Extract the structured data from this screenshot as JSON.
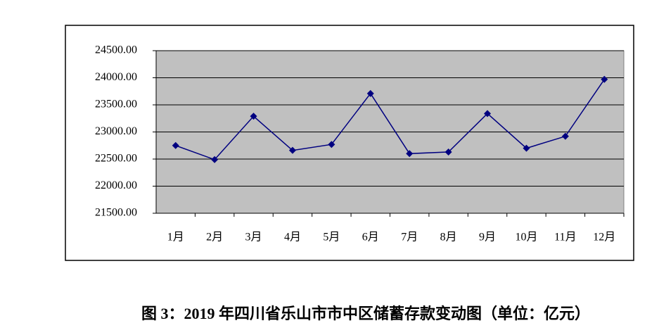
{
  "chart_data": {
    "type": "line",
    "title": "图 3：2019 年四川省乐山市市中区储蓄存款变动图（单位：亿元）",
    "categories": [
      "1月",
      "2月",
      "3月",
      "4月",
      "5月",
      "6月",
      "7月",
      "8月",
      "9月",
      "10月",
      "11月",
      "12月"
    ],
    "series": [
      {
        "color": "#000080",
        "values": [
          22750,
          22490,
          23290,
          22660,
          22770,
          23710,
          22600,
          22630,
          23340,
          22700,
          22920,
          23970
        ]
      }
    ],
    "ylim": [
      21500,
      24500
    ],
    "yticks": [
      {
        "value": 21500,
        "label": "21500.00"
      },
      {
        "value": 22000,
        "label": "22000.00"
      },
      {
        "value": 22500,
        "label": "22500.00"
      },
      {
        "value": 23000,
        "label": "23000.00"
      },
      {
        "value": 23500,
        "label": "23500.00"
      },
      {
        "value": 24000,
        "label": "24000.00"
      },
      {
        "value": 24500,
        "label": "24500.00"
      }
    ],
    "grid": true,
    "background": "#c0c0c0"
  }
}
